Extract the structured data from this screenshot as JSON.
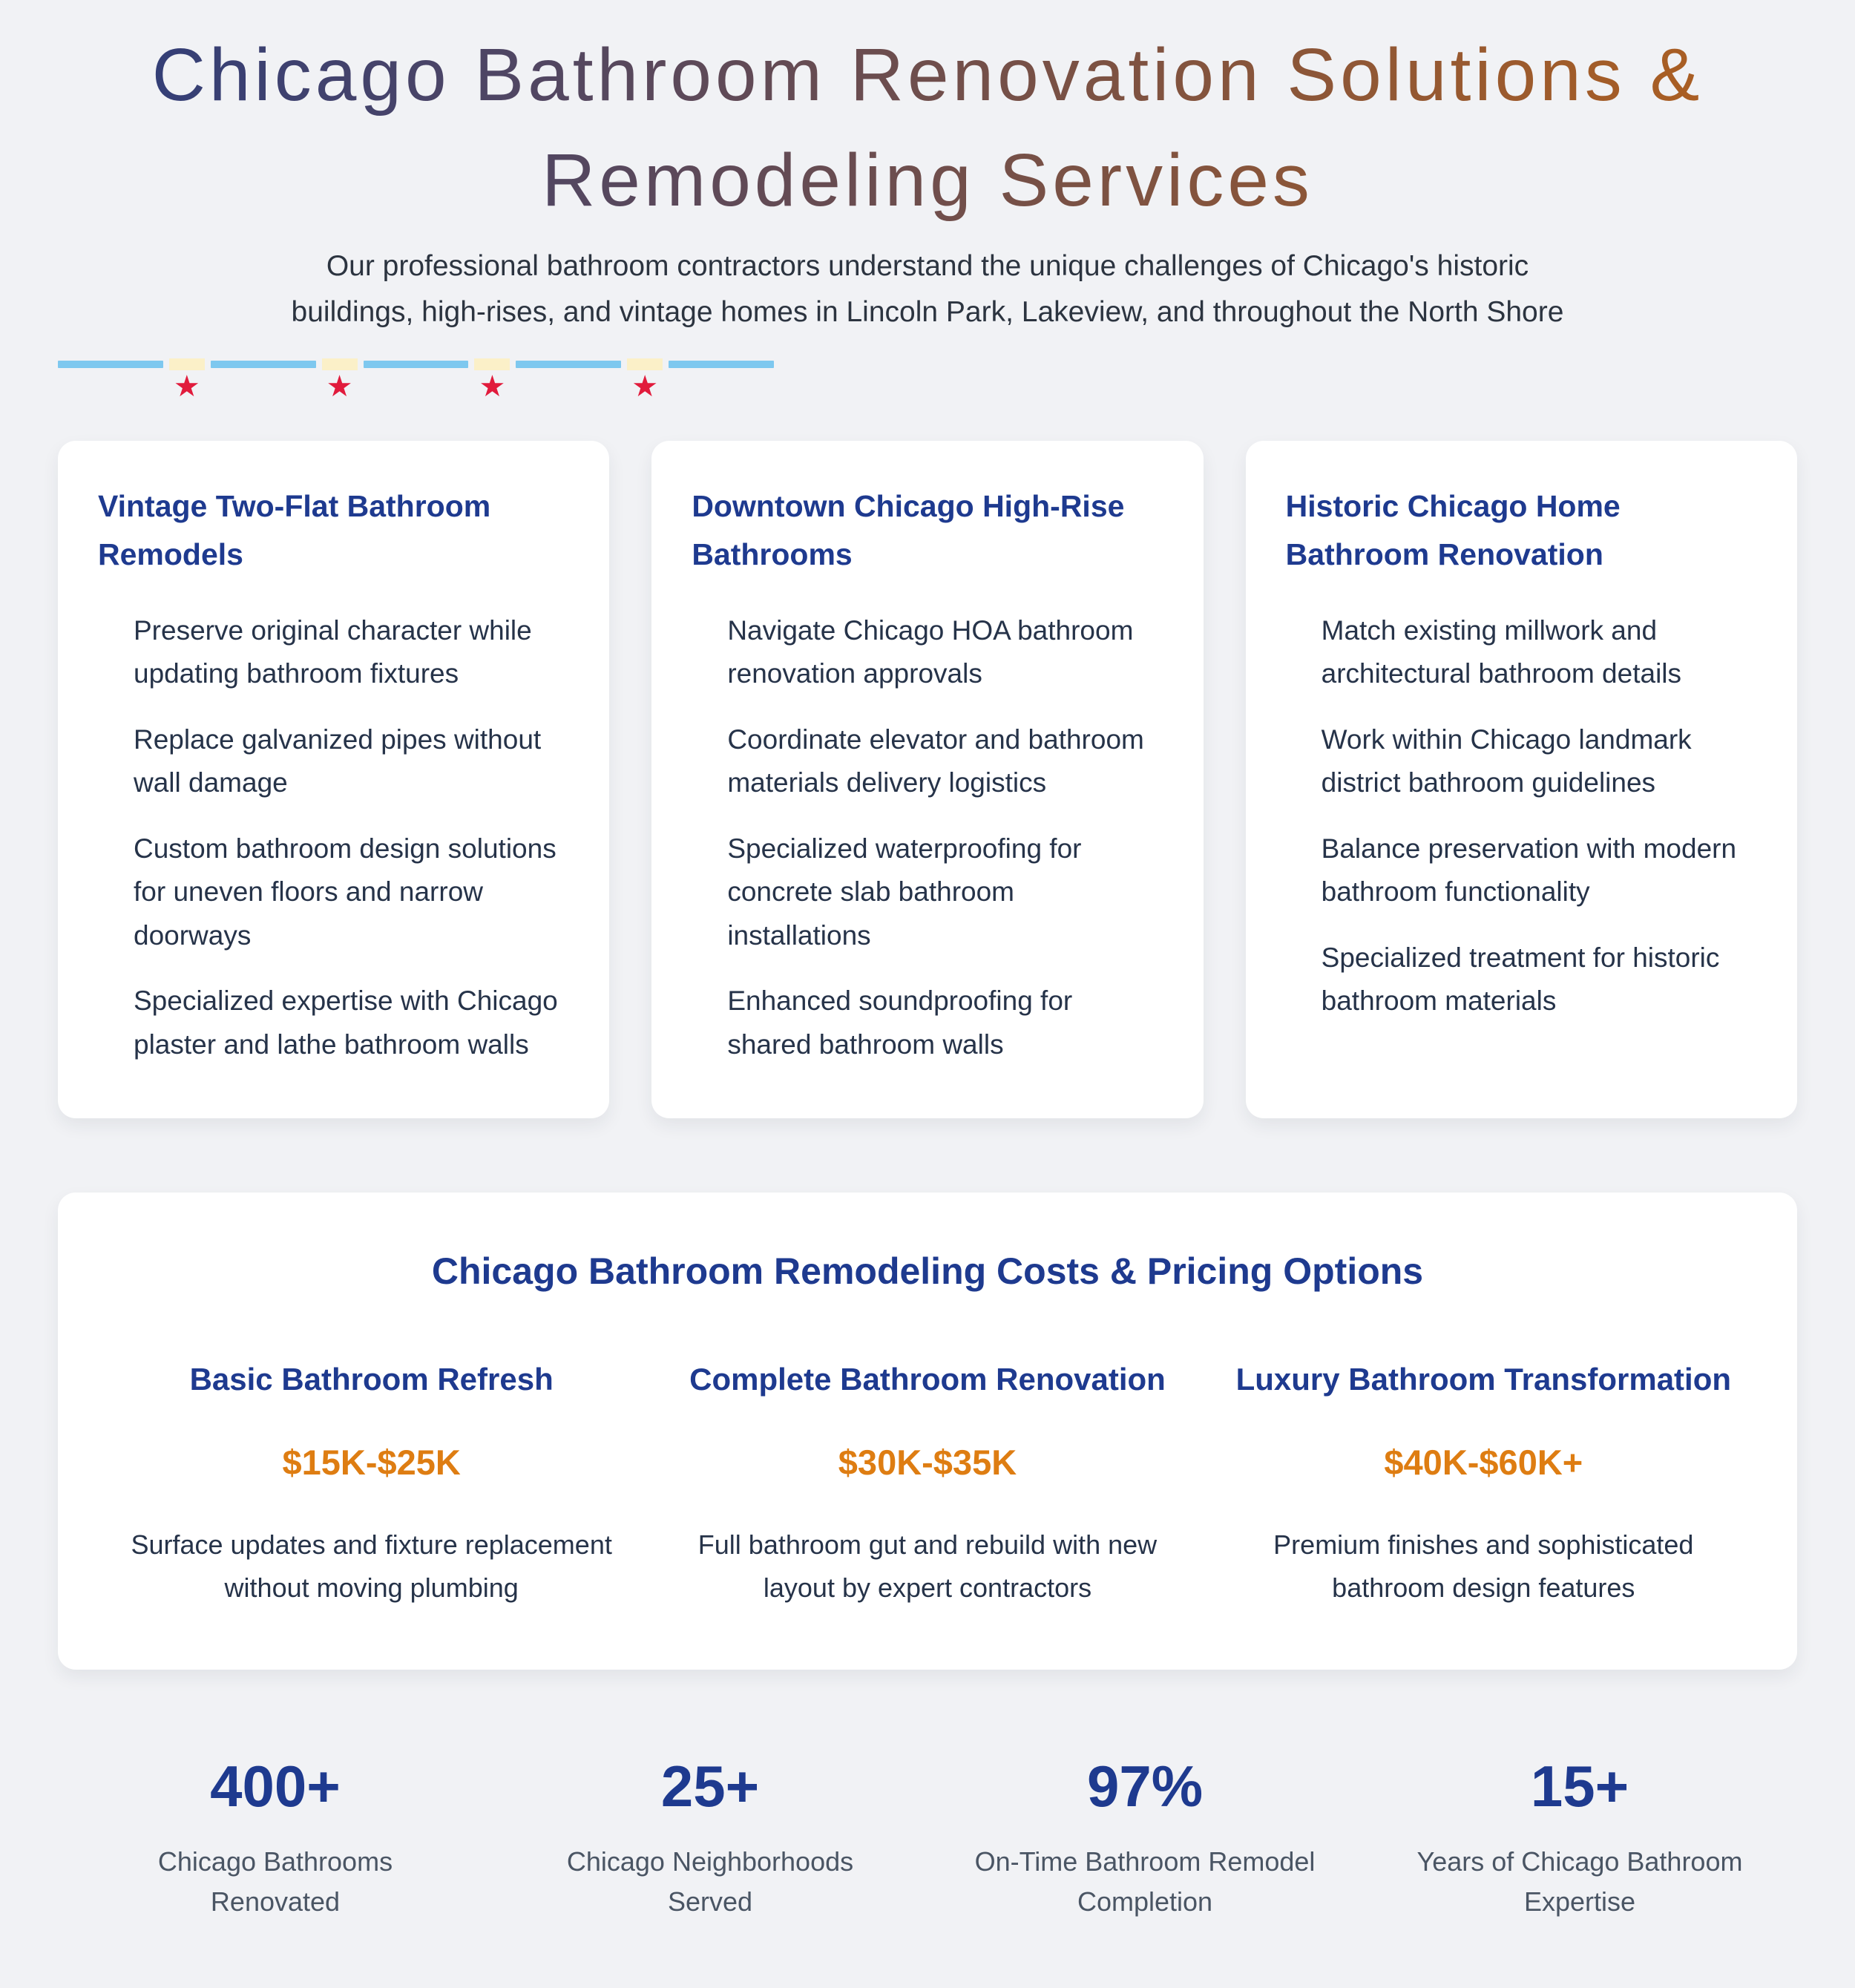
{
  "hero": {
    "title_line1": "Chicago Bathroom Renovation Solutions &",
    "title_line2": "Remodeling Services",
    "subtitle": "Our professional bathroom contractors understand the unique challenges of Chicago's historic buildings, high-rises, and vintage homes in Lincoln Park, Lakeview, and throughout the North Shore"
  },
  "flag": {
    "star": "★"
  },
  "service_cards": [
    {
      "title": "Vintage Two-Flat Bathroom Remodels",
      "items": [
        "Preserve original character while updating bathroom fixtures",
        "Replace galvanized pipes without wall damage",
        "Custom bathroom design solutions for uneven floors and narrow doorways",
        "Specialized expertise with Chicago plaster and lathe bathroom walls"
      ]
    },
    {
      "title": "Downtown Chicago High-Rise Bathrooms",
      "items": [
        "Navigate Chicago HOA bathroom renovation approvals",
        "Coordinate elevator and bathroom materials delivery logistics",
        "Specialized waterproofing for concrete slab bathroom installations",
        "Enhanced soundproofing for shared bathroom walls"
      ]
    },
    {
      "title": "Historic Chicago Home Bathroom Renovation",
      "items": [
        "Match existing millwork and architectural bathroom details",
        "Work within Chicago landmark district bathroom guidelines",
        "Balance preservation with modern bathroom functionality",
        "Specialized treatment for historic bathroom materials"
      ]
    }
  ],
  "pricing": {
    "title": "Chicago Bathroom Remodeling Costs & Pricing Options",
    "tiers": [
      {
        "name": "Basic Bathroom Refresh",
        "price": "$15K-$25K",
        "description": "Surface updates and fixture replacement without moving plumbing"
      },
      {
        "name": "Complete Bathroom Renovation",
        "price": "$30K-$35K",
        "description": "Full bathroom gut and rebuild with new layout by expert contractors"
      },
      {
        "name": "Luxury Bathroom Transformation",
        "price": "$40K-$60K+",
        "description": "Premium finishes and sophisticated bathroom design features"
      }
    ]
  },
  "stats": [
    {
      "value": "400+",
      "label": "Chicago Bathrooms Renovated"
    },
    {
      "value": "25+",
      "label": "Chicago Neighborhoods Served"
    },
    {
      "value": "97%",
      "label": "On-Time Bathroom Remodel Completion"
    },
    {
      "value": "15+",
      "label": "Years of Chicago Bathroom Expertise"
    }
  ],
  "colors": {
    "background": "#f1f2f5",
    "title_gradient_start": "#2e3d7b",
    "title_gradient_end": "#b0601f",
    "heading_navy": "#1e3a8f",
    "price_orange": "#de7d12",
    "body_text": "#263349",
    "stat_label_gray": "#4a5564",
    "flag_blue": "#7ec8ef",
    "flag_cream": "#fbf0c8",
    "flag_red": "#e11b3c"
  }
}
